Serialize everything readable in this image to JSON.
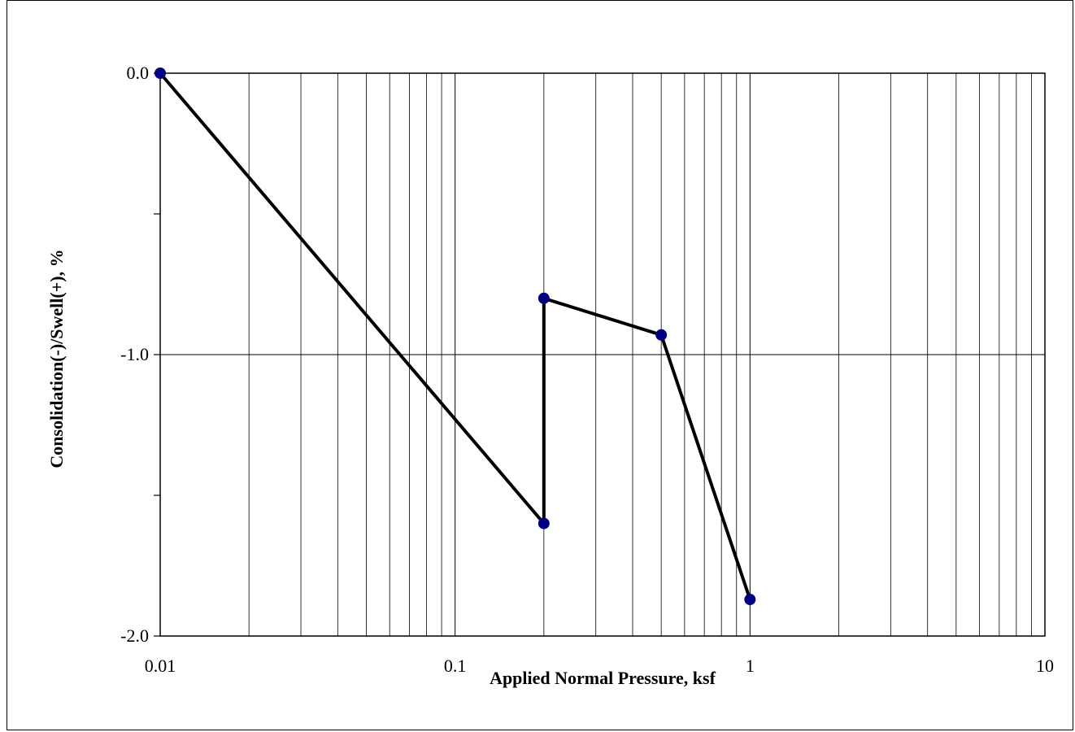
{
  "chart_data": {
    "type": "line",
    "xlabel": "Applied Normal Pressure, ksf",
    "ylabel": "Consolidation(-)/Swell(+), %",
    "x_scale": "log",
    "xlim": [
      0.01,
      10
    ],
    "ylim": [
      -2.0,
      0.0
    ],
    "x_major_ticks": [
      0.01,
      0.1,
      1,
      10
    ],
    "x_tick_labels": [
      "0.01",
      "0.1",
      "1",
      "10"
    ],
    "y_major_ticks": [
      0.0,
      -1.0,
      -2.0
    ],
    "y_tick_labels": [
      "0.0",
      "-1.0",
      "-2.0"
    ],
    "y_minor_tick_step": 0.5,
    "grid": {
      "x_major": true,
      "x_minor": true,
      "y_major": true,
      "y_minor": false
    },
    "legend": "none",
    "series": [
      {
        "x": [
          0.01,
          0.2,
          0.2,
          0.5,
          1.0
        ],
        "y": [
          0.0,
          -1.6,
          -0.8,
          -0.93,
          -1.87
        ],
        "line_color": "#000000",
        "marker_color": "#000080"
      }
    ]
  }
}
